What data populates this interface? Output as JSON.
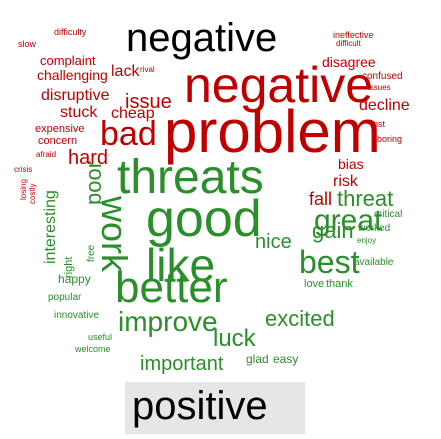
{
  "colors": {
    "negative": "#c00000",
    "positive": "#2a8f2a",
    "neutral": "#000000",
    "box": "#e6e6e6"
  },
  "words": [
    {
      "id": "w-negative-top",
      "text": "negative",
      "color": "neutral"
    },
    {
      "id": "w-negative-big",
      "text": "negative",
      "color": "negative"
    },
    {
      "id": "w-problem",
      "text": "problem",
      "color": "negative"
    },
    {
      "id": "w-threats",
      "text": "threats",
      "color": "positive"
    },
    {
      "id": "w-good",
      "text": "good",
      "color": "positive"
    },
    {
      "id": "w-like",
      "text": "like",
      "color": "positive"
    },
    {
      "id": "w-better",
      "text": "better",
      "color": "positive"
    },
    {
      "id": "w-improve",
      "text": "improve",
      "color": "positive"
    },
    {
      "id": "w-positive",
      "text": "positive",
      "color": "neutral"
    },
    {
      "id": "w-great",
      "text": "great",
      "color": "positive"
    },
    {
      "id": "w-best",
      "text": "best",
      "color": "positive"
    },
    {
      "id": "w-bad",
      "text": "bad",
      "color": "negative"
    },
    {
      "id": "w-issue",
      "text": "issue",
      "color": "negative"
    },
    {
      "id": "w-lack",
      "text": "lack",
      "color": "negative"
    },
    {
      "id": "w-threat",
      "text": "threat",
      "color": "positive"
    },
    {
      "id": "w-important",
      "text": "important",
      "color": "positive"
    },
    {
      "id": "w-luck",
      "text": "luck",
      "color": "positive"
    },
    {
      "id": "w-excited",
      "text": "excited",
      "color": "positive"
    },
    {
      "id": "w-nice",
      "text": "nice",
      "color": "positive"
    },
    {
      "id": "w-gain",
      "text": "gain",
      "color": "positive"
    },
    {
      "id": "w-hard",
      "text": "hard",
      "color": "negative"
    },
    {
      "id": "w-risk",
      "text": "risk",
      "color": "negative"
    },
    {
      "id": "w-bias",
      "text": "bias",
      "color": "negative"
    },
    {
      "id": "w-fall",
      "text": "fall",
      "color": "negative"
    },
    {
      "id": "w-stuck",
      "text": "stuck",
      "color": "negative"
    },
    {
      "id": "w-cheap",
      "text": "cheap",
      "color": "negative"
    },
    {
      "id": "w-slow",
      "text": "slow",
      "color": "negative"
    },
    {
      "id": "w-difficulty",
      "text": "difficulty",
      "color": "negative"
    },
    {
      "id": "w-complaint",
      "text": "complaint",
      "color": "negative"
    },
    {
      "id": "w-challenging",
      "text": "challenging",
      "color": "negative"
    },
    {
      "id": "w-rival",
      "text": "rival",
      "color": "negative"
    },
    {
      "id": "w-disruptive",
      "text": "disruptive",
      "color": "negative"
    },
    {
      "id": "w-disagree",
      "text": "disagree",
      "color": "negative"
    },
    {
      "id": "w-ineffective",
      "text": "ineffective",
      "color": "negative"
    },
    {
      "id": "w-difficult",
      "text": "difficult",
      "color": "negative"
    },
    {
      "id": "w-confused",
      "text": "confused",
      "color": "negative"
    },
    {
      "id": "w-issues",
      "text": "issues",
      "color": "negative"
    },
    {
      "id": "w-decline",
      "text": "decline",
      "color": "negative"
    },
    {
      "id": "w-lost",
      "text": "lost",
      "color": "negative"
    },
    {
      "id": "w-boring",
      "text": "boring",
      "color": "negative"
    },
    {
      "id": "w-expensive",
      "text": "expensive",
      "color": "negative"
    },
    {
      "id": "w-concern",
      "text": "concern",
      "color": "negative"
    },
    {
      "id": "w-afraid",
      "text": "afraid",
      "color": "negative"
    },
    {
      "id": "w-crisis",
      "text": "crisis",
      "color": "negative"
    },
    {
      "id": "w-losing",
      "text": "losing",
      "color": "negative"
    },
    {
      "id": "w-costly",
      "text": "costly",
      "color": "negative"
    },
    {
      "id": "w-interesting",
      "text": "interesting",
      "color": "positive"
    },
    {
      "id": "w-poor",
      "text": "poor",
      "color": "positive"
    },
    {
      "id": "w-free",
      "text": "free",
      "color": "positive"
    },
    {
      "id": "w-right",
      "text": "right",
      "color": "positive"
    },
    {
      "id": "w-work",
      "text": "work",
      "color": "positive"
    },
    {
      "id": "w-happy",
      "text": "happy",
      "color": "positive"
    },
    {
      "id": "w-popular",
      "text": "popular",
      "color": "positive"
    },
    {
      "id": "w-innovative",
      "text": "innovative",
      "color": "positive"
    },
    {
      "id": "w-useful",
      "text": "useful",
      "color": "positive"
    },
    {
      "id": "w-welcome",
      "text": "welcome",
      "color": "positive"
    },
    {
      "id": "w-glad",
      "text": "glad",
      "color": "positive"
    },
    {
      "id": "w-easy",
      "text": "easy",
      "color": "positive"
    },
    {
      "id": "w-worked",
      "text": "worked",
      "color": "positive"
    },
    {
      "id": "w-enjoy",
      "text": "enjoy",
      "color": "positive"
    },
    {
      "id": "w-available",
      "text": "available",
      "color": "positive"
    },
    {
      "id": "w-love",
      "text": "love",
      "color": "positive"
    },
    {
      "id": "w-thank",
      "text": "thank",
      "color": "positive"
    },
    {
      "id": "w-critical",
      "text": "critical",
      "color": "positive"
    }
  ]
}
